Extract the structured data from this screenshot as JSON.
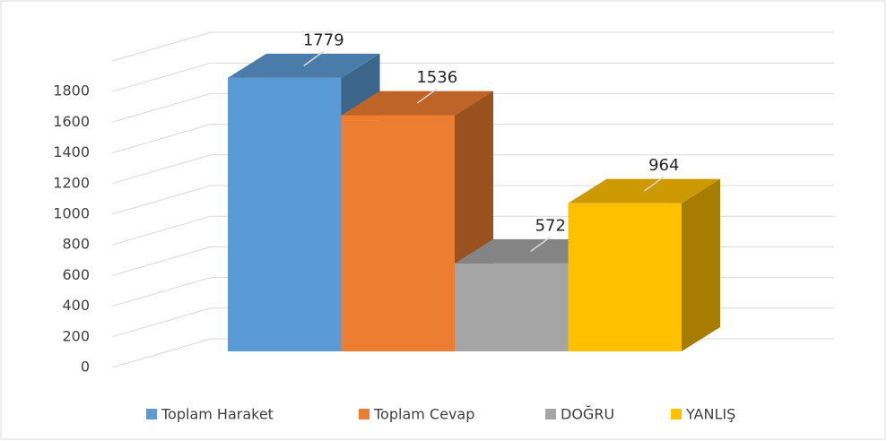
{
  "chart_data": {
    "type": "bar",
    "categories": [
      "Toplam Haraket",
      "Toplam Cevap",
      "DOĞRU",
      "YANLIŞ"
    ],
    "values": [
      1779,
      1536,
      572,
      964
    ],
    "colors": [
      "#5b9bd5",
      "#ed7d31",
      "#a5a5a5",
      "#ffc000"
    ],
    "ylim": [
      0,
      2000
    ],
    "yticks": [
      0,
      200,
      400,
      600,
      800,
      1000,
      1200,
      1400,
      1600,
      1800
    ],
    "grid": true,
    "legend": "bottom"
  }
}
